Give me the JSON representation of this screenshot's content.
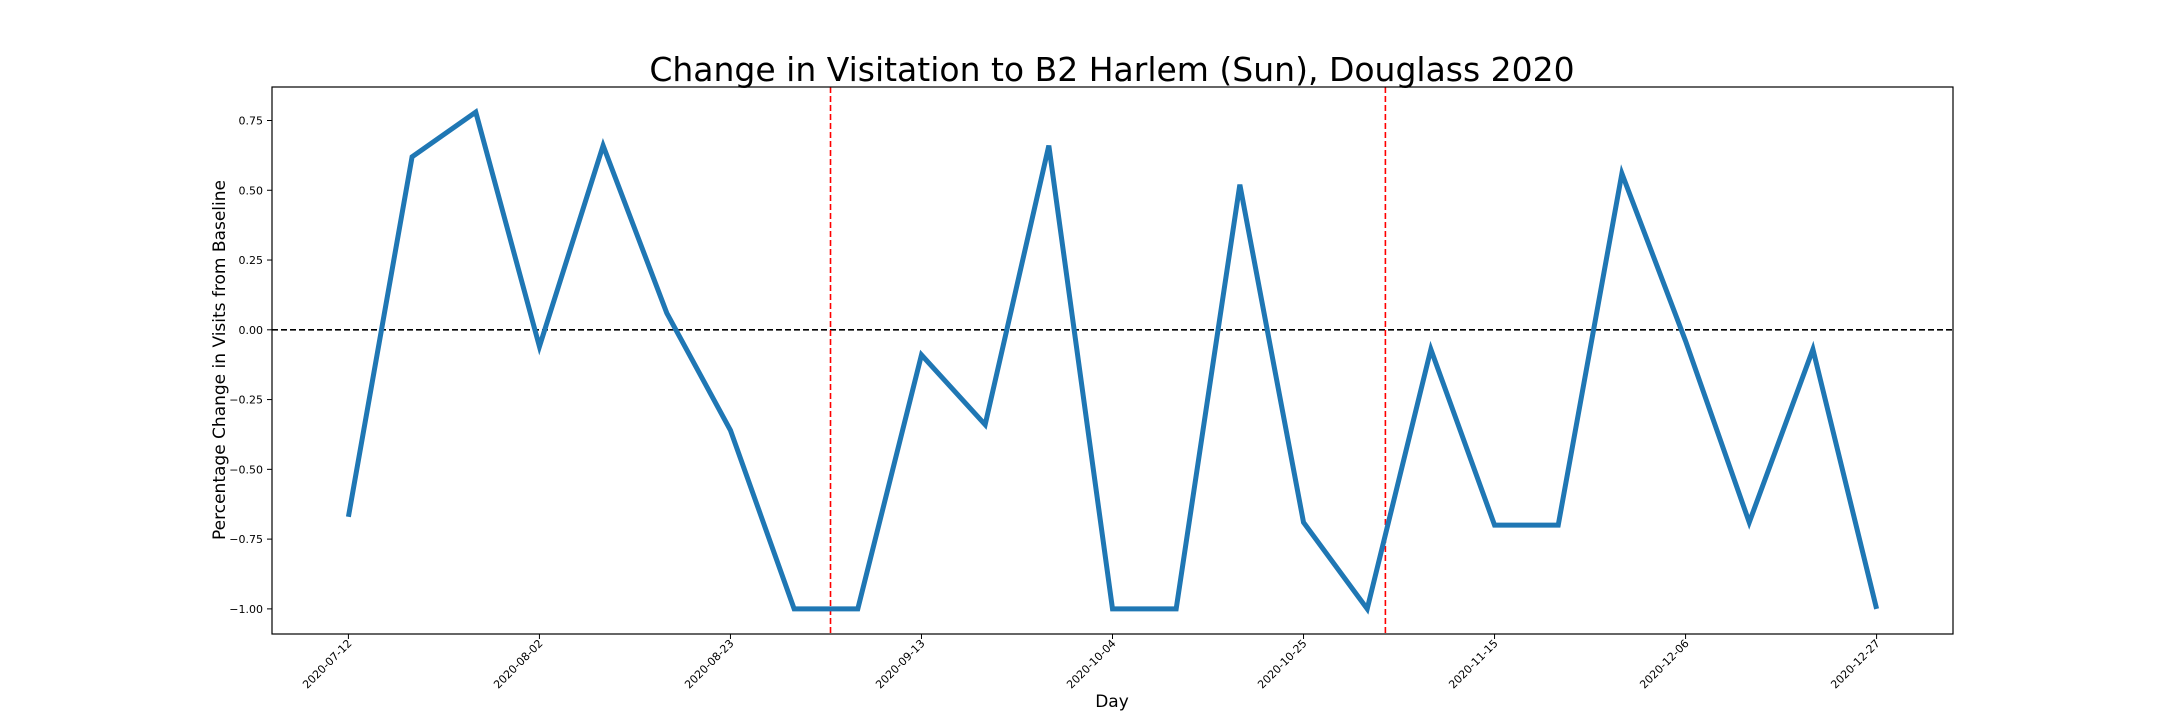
{
  "chart_data": {
    "type": "line",
    "title": "Change in Visitation to B2 Harlem (Sun), Douglass 2020",
    "xlabel": "Day",
    "ylabel": "Percentage Change in Visits from Baseline",
    "x": [
      "2020-07-12",
      "2020-07-19",
      "2020-07-26",
      "2020-08-02",
      "2020-08-09",
      "2020-08-16",
      "2020-08-23",
      "2020-08-30",
      "2020-09-06",
      "2020-09-13",
      "2020-09-20",
      "2020-09-27",
      "2020-10-04",
      "2020-10-11",
      "2020-10-18",
      "2020-10-25",
      "2020-11-01",
      "2020-11-08",
      "2020-11-15",
      "2020-11-22",
      "2020-11-29",
      "2020-12-06",
      "2020-12-13",
      "2020-12-20",
      "2020-12-27"
    ],
    "series": [
      {
        "values": [
          -0.67,
          0.62,
          0.78,
          -0.06,
          0.66,
          0.06,
          -0.36,
          -1.0,
          -1.0,
          -0.09,
          -0.34,
          0.66,
          -1.0,
          -1.0,
          0.52,
          -0.69,
          -1.0,
          -0.07,
          -0.7,
          -0.7,
          0.56,
          -0.04,
          -0.69,
          -0.07,
          -1.0
        ],
        "color": "#1f77b4"
      }
    ],
    "xticks": [
      "2020-07-12",
      "2020-08-02",
      "2020-08-23",
      "2020-09-13",
      "2020-10-04",
      "2020-10-25",
      "2020-11-15",
      "2020-12-06",
      "2020-12-27"
    ],
    "yticks": [
      0.75,
      0.5,
      0.25,
      0.0,
      -0.25,
      -0.5,
      -0.75,
      -1.0
    ],
    "ytick_labels": [
      "0.75",
      "0.50",
      "0.25",
      "0.00",
      "−0.25",
      "−0.50",
      "−0.75",
      "−1.00"
    ],
    "ylim": [
      -1.09,
      0.87
    ],
    "baseline": {
      "y": 0,
      "color": "#000000",
      "style": "dashed"
    },
    "vlines": [
      {
        "x": "2020-09-03",
        "color": "#ff0000",
        "style": "dashed"
      },
      {
        "x": "2020-11-03",
        "color": "#ff0000",
        "style": "dashed"
      }
    ],
    "grid": false,
    "legend": "none"
  }
}
